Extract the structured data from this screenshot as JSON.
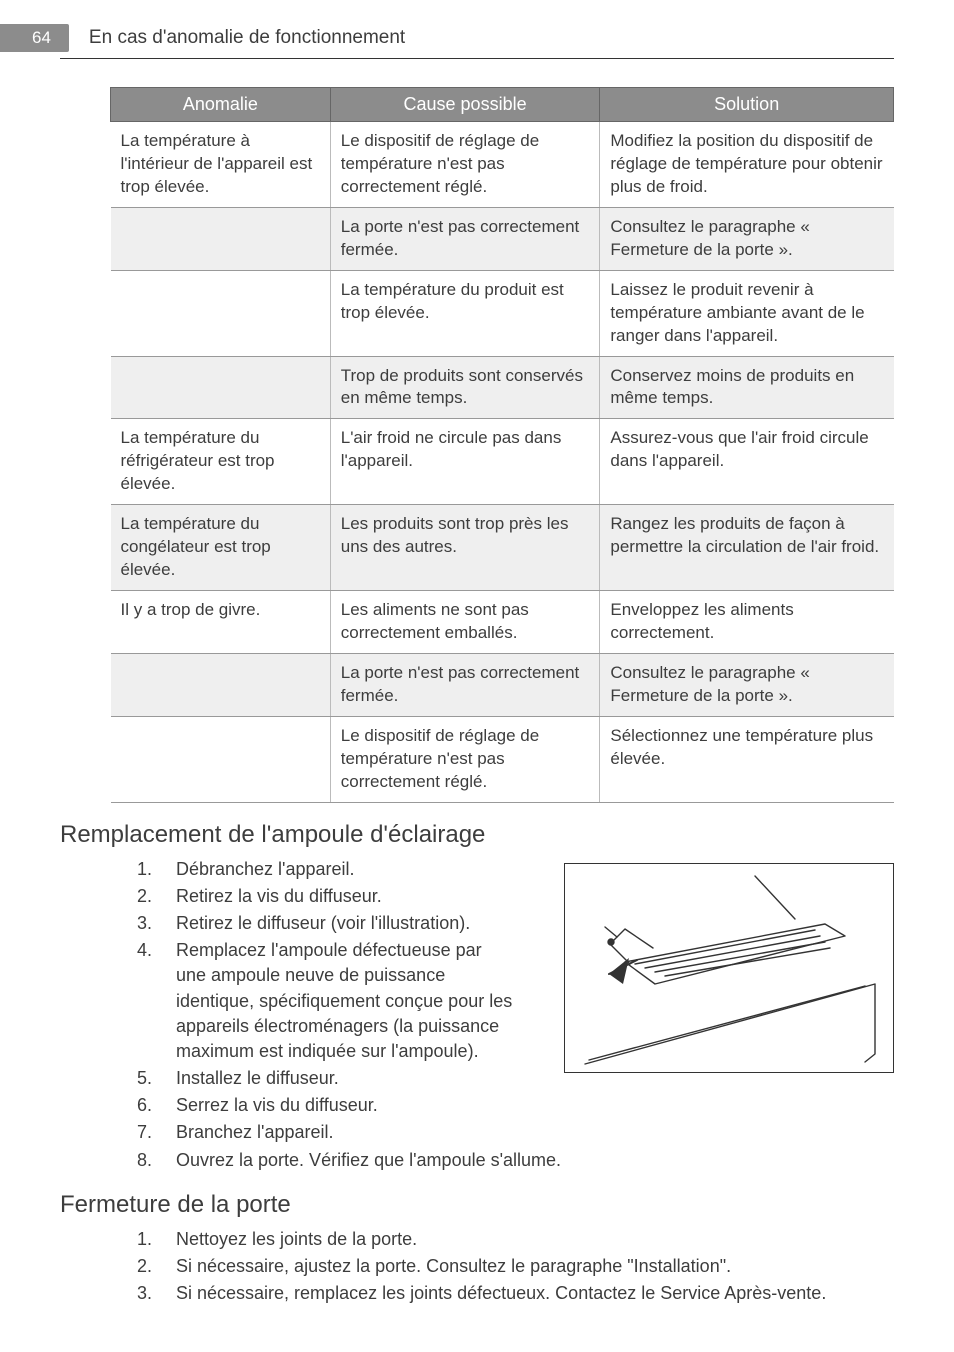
{
  "header": {
    "page_number": "64",
    "section_title": "En cas d'anomalie de fonctionnement"
  },
  "table": {
    "headers": [
      "Anomalie",
      "Cause possible",
      "Solution"
    ],
    "rows": [
      {
        "shade": false,
        "anomaly": "La température à l'intérieur de l'appareil est trop élevée.",
        "cause": "Le dispositif de réglage de température n'est pas correctement réglé.",
        "solution": "Modifiez la position du dispositif de réglage de température pour obtenir plus de froid."
      },
      {
        "shade": true,
        "anomaly": "",
        "cause": "La porte n'est pas correctement fermée.",
        "solution": "Consultez le paragraphe « Fermeture de la porte »."
      },
      {
        "shade": false,
        "anomaly": "",
        "cause": "La température du produit est trop élevée.",
        "solution": "Laissez le produit revenir à température ambiante avant de le ranger dans l'appareil."
      },
      {
        "shade": true,
        "anomaly": "",
        "cause": "Trop de produits sont conservés en même temps.",
        "solution": "Conservez moins de produits en même temps."
      },
      {
        "shade": false,
        "anomaly": "La température du réfrigérateur est trop élevée.",
        "cause": "L'air froid ne circule pas dans l'appareil.",
        "solution": "Assurez-vous que l'air froid circule dans l'appareil."
      },
      {
        "shade": true,
        "anomaly": "La température du congélateur est trop élevée.",
        "cause": "Les produits sont trop près les uns des autres.",
        "solution": "Rangez les produits de façon à permettre la circulation de l'air froid."
      },
      {
        "shade": false,
        "anomaly": "Il y a trop de givre.",
        "cause": "Les aliments ne sont pas correctement emballés.",
        "solution": "Enveloppez les aliments correctement."
      },
      {
        "shade": true,
        "anomaly": "",
        "cause": "La porte n'est pas correctement fermée.",
        "solution": "Consultez le paragraphe « Fermeture de la porte »."
      },
      {
        "shade": false,
        "anomaly": "",
        "cause": "Le dispositif de réglage de température n'est pas correctement réglé.",
        "solution": "Sélectionnez une température plus élevée."
      }
    ]
  },
  "sections": [
    {
      "title": "Remplacement de l'ampoule d'éclairage",
      "has_figure": true,
      "items": [
        "Débranchez l'appareil.",
        "Retirez la vis du diffuseur.",
        "Retirez le diffuseur (voir l'illustration).",
        "Remplacez l'ampoule défectueuse par une ampoule neuve de puissance identique, spécifiquement conçue pour les appareils électroménagers (la puissance maximum est indiquée sur l'ampoule).",
        "Installez le diffuseur.",
        "Serrez la vis du diffuseur.",
        "Branchez l'appareil.",
        "Ouvrez la porte. Vérifiez que l'ampoule s'allume."
      ]
    },
    {
      "title": "Fermeture de la porte",
      "has_figure": false,
      "items": [
        "Nettoyez les joints de la porte.",
        "Si nécessaire, ajustez la porte. Consultez le paragraphe \"Installation\".",
        "Si nécessaire, remplacez les joints défectueux. Contactez le Service Après-vente."
      ]
    }
  ],
  "figure": {
    "alt": "diffuser-removal-illustration"
  }
}
